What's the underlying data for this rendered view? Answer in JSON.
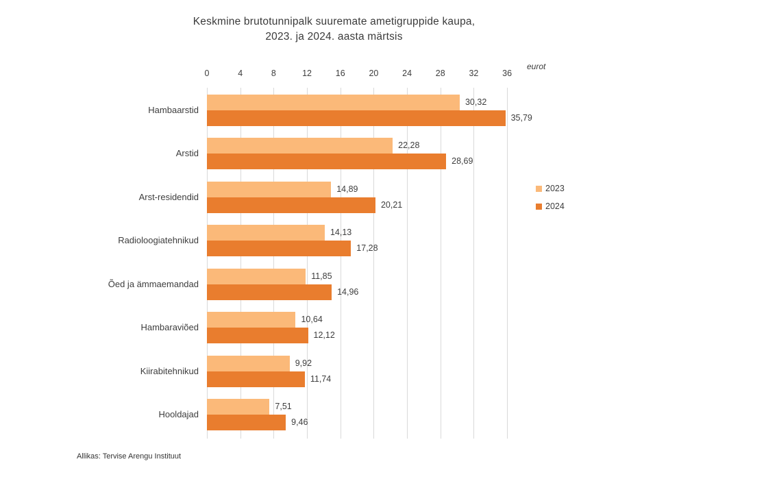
{
  "chart": {
    "title_line1": "Keskmine brutotunnipalk suuremate ametigruppide kaupa,",
    "title_line2": "2023. ja 2024. aasta märtsis",
    "unit_label": "eurot",
    "source": "Allikas: Tervise Arengu Instituut"
  },
  "chart_data": {
    "type": "bar",
    "orientation": "horizontal",
    "title": "Keskmine brutotunnipalk suuremate ametigruppide kaupa, 2023. ja 2024. aasta märtsis",
    "xlabel": "eurot",
    "xlim": [
      0,
      36
    ],
    "x_ticks": [
      0,
      4,
      8,
      12,
      16,
      20,
      24,
      28,
      32,
      36
    ],
    "grid": "vertical",
    "legend_position": "right",
    "decimal_separator": ",",
    "categories": [
      "Hambaarstid",
      "Arstid",
      "Arst-residendid",
      "Radioloogiatehnikud",
      "Õed ja ämmaemandad",
      "Hambaraviõed",
      "Kiirabitehnikud",
      "Hooldajad"
    ],
    "series": [
      {
        "name": "2023",
        "color": "#FBB979",
        "values": [
          30.32,
          22.28,
          14.89,
          14.13,
          11.85,
          10.64,
          9.92,
          7.51
        ]
      },
      {
        "name": "2024",
        "color": "#E97D2E",
        "values": [
          35.79,
          28.69,
          20.21,
          17.28,
          14.96,
          12.12,
          11.74,
          9.46
        ]
      }
    ]
  }
}
